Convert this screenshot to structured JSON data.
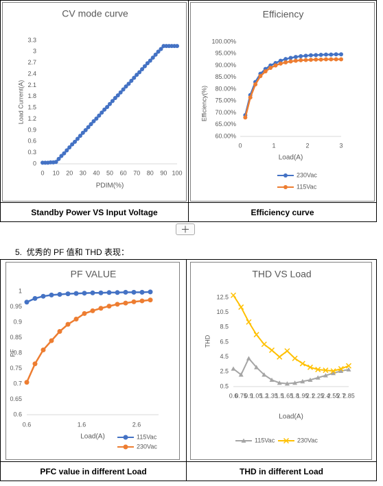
{
  "chart_data": [
    {
      "type": "line",
      "title": "CV mode curve",
      "x_label": "PDIM(%)",
      "y_label": "Load Current(A)",
      "color": "#4472c4",
      "marker": "circle",
      "grid": false,
      "x": [
        0,
        2,
        4,
        6,
        8,
        10,
        12,
        14,
        16,
        18,
        20,
        22,
        24,
        26,
        28,
        30,
        32,
        34,
        36,
        38,
        40,
        42,
        44,
        46,
        48,
        50,
        52,
        54,
        56,
        58,
        60,
        62,
        64,
        66,
        68,
        70,
        72,
        74,
        76,
        78,
        80,
        82,
        84,
        86,
        88,
        90,
        92,
        94,
        96,
        98,
        100
      ],
      "values": [
        0.03,
        0.03,
        0.03,
        0.04,
        0.04,
        0.05,
        0.13,
        0.21,
        0.28,
        0.36,
        0.44,
        0.52,
        0.59,
        0.67,
        0.75,
        0.83,
        0.9,
        0.98,
        1.06,
        1.14,
        1.21,
        1.29,
        1.37,
        1.45,
        1.52,
        1.6,
        1.68,
        1.76,
        1.83,
        1.91,
        1.99,
        2.07,
        2.14,
        2.22,
        2.3,
        2.38,
        2.45,
        2.53,
        2.61,
        2.69,
        2.76,
        2.84,
        2.92,
        3.0,
        3.07,
        3.15,
        3.15,
        3.15,
        3.15,
        3.15,
        3.15
      ],
      "xlim": [
        0,
        100
      ],
      "xticks": [
        0,
        10,
        20,
        30,
        40,
        50,
        60,
        70,
        80,
        90,
        100
      ],
      "ylim": [
        0,
        3.3
      ],
      "yticks": [
        0,
        0.3,
        0.6,
        0.9,
        1.2,
        1.5,
        1.8,
        2.1,
        2.4,
        2.7,
        3,
        3.3
      ]
    },
    {
      "type": "line",
      "title": "Efficiency",
      "x_label": "Load(A)",
      "y_label": "Efficiency(%)",
      "grid": false,
      "legend": "bottom",
      "x": [
        0.15,
        0.3,
        0.45,
        0.6,
        0.75,
        0.9,
        1.05,
        1.2,
        1.35,
        1.5,
        1.65,
        1.8,
        1.95,
        2.1,
        2.25,
        2.4,
        2.55,
        2.7,
        2.85,
        3.0
      ],
      "series": [
        {
          "name": "230Vac",
          "color": "#4472c4",
          "marker": "circle",
          "values": [
            69,
            77.5,
            83,
            86.5,
            88.5,
            90,
            91,
            92,
            92.7,
            93.2,
            93.6,
            93.9,
            94.1,
            94.3,
            94.4,
            94.5,
            94.6,
            94.6,
            94.7,
            94.7
          ]
        },
        {
          "name": "115Vac",
          "color": "#ed7d31",
          "marker": "circle",
          "values": [
            68,
            76.5,
            82,
            85.5,
            87.5,
            89,
            90,
            90.8,
            91.3,
            91.7,
            92,
            92.2,
            92.3,
            92.4,
            92.5,
            92.5,
            92.6,
            92.6,
            92.6,
            92.6
          ]
        }
      ],
      "xlim": [
        0,
        3
      ],
      "xticks": [
        0,
        1,
        2,
        3
      ],
      "ylim": [
        60,
        100
      ],
      "yticks": [
        {
          "value": 60,
          "label": "60.00%"
        },
        {
          "value": 65,
          "label": "65.00%"
        },
        {
          "value": 70,
          "label": "70.00%"
        },
        {
          "value": 75,
          "label": "75.00%"
        },
        {
          "value": 80,
          "label": "80.00%"
        },
        {
          "value": 85,
          "label": "85.00%"
        },
        {
          "value": 90,
          "label": "90.00%"
        },
        {
          "value": 95,
          "label": "95.00%"
        },
        {
          "value": 100,
          "label": "100.00%"
        }
      ]
    },
    {
      "type": "line",
      "title": "PF VALUE",
      "x_label": "Load(A)",
      "y_label": "PF",
      "grid": false,
      "legend": "bottom",
      "x": [
        0.6,
        0.75,
        0.9,
        1.05,
        1.2,
        1.35,
        1.5,
        1.65,
        1.8,
        1.95,
        2.1,
        2.25,
        2.4,
        2.55,
        2.7,
        2.85
      ],
      "series": [
        {
          "name": "115Vac",
          "color": "#4472c4",
          "marker": "circle",
          "values": [
            0.965,
            0.977,
            0.984,
            0.988,
            0.99,
            0.992,
            0.993,
            0.994,
            0.995,
            0.995,
            0.996,
            0.996,
            0.997,
            0.997,
            0.997,
            0.998
          ]
        },
        {
          "name": "230Vac",
          "color": "#ed7d31",
          "marker": "circle",
          "values": [
            0.705,
            0.765,
            0.81,
            0.84,
            0.87,
            0.893,
            0.91,
            0.928,
            0.937,
            0.945,
            0.952,
            0.958,
            0.962,
            0.966,
            0.969,
            0.972
          ]
        }
      ],
      "xlim": [
        0.6,
        3.0
      ],
      "xticks": [
        0.6,
        1.6,
        2.6
      ],
      "ylim": [
        0.6,
        1.0
      ],
      "yticks": [
        0.6,
        0.65,
        0.7,
        0.75,
        0.8,
        0.85,
        0.9,
        0.95,
        1
      ]
    },
    {
      "type": "line",
      "title": "THD VS Load",
      "x_label": "Load(A)",
      "y_label": "THD",
      "grid": false,
      "legend": "bottom",
      "categories": [
        "0.6",
        "0.75",
        "0.9",
        "1.05",
        "1.2",
        "1.35",
        "1.5",
        "1.65",
        "1.8",
        "1.95",
        "2.1",
        "2.25",
        "2.4",
        "2.55",
        "2.7",
        "2.85"
      ],
      "series": [
        {
          "name": "115Vac",
          "color": "#a5a5a5",
          "marker": "triangle",
          "values": [
            2.9,
            2.1,
            4.3,
            3.1,
            2.1,
            1.4,
            1.0,
            0.9,
            1.0,
            1.2,
            1.4,
            1.7,
            2.0,
            2.3,
            2.6,
            2.8
          ]
        },
        {
          "name": "230Vac",
          "color": "#ffc000",
          "marker": "cross",
          "values": [
            12.8,
            11.2,
            9.2,
            7.5,
            6.2,
            5.4,
            4.5,
            5.3,
            4.3,
            3.6,
            3.1,
            2.8,
            2.7,
            2.6,
            2.9,
            3.3
          ]
        }
      ],
      "ylim": [
        0.5,
        12.5
      ],
      "yticks": [
        0.5,
        2.5,
        4.5,
        6.5,
        8.5,
        10.5,
        12.5
      ]
    }
  ],
  "captions": [
    "Standby Power VS Input Voltage",
    "Efficiency curve",
    "PFC value in different Load",
    "THD in different Load"
  ],
  "heading": "5.  优秀的 PF 值和 THD 表现："
}
